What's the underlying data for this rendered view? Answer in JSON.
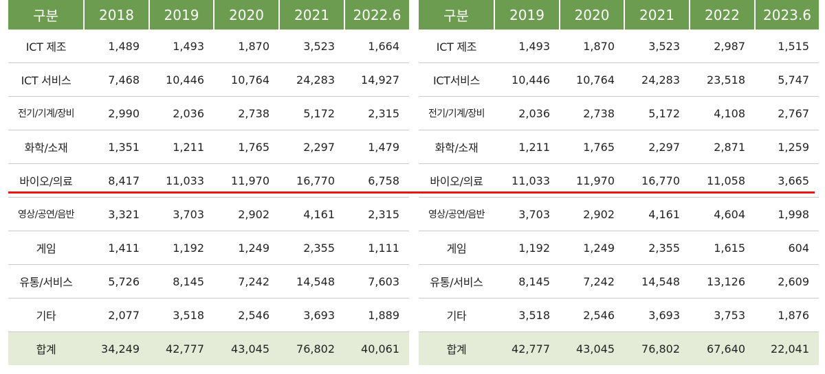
{
  "colors": {
    "header_bg": "#6c9c4f",
    "total_row_bg": "#e4ecd8",
    "divider_red": "#e8141a"
  },
  "left_table": {
    "headers": [
      "구분",
      "2018",
      "2019",
      "2020",
      "2021",
      "2022.6"
    ],
    "rows": [
      {
        "category": "ICT 제조",
        "values": [
          "1,489",
          "1,493",
          "1,870",
          "3,523",
          "1,664"
        ]
      },
      {
        "category": "ICT 서비스",
        "values": [
          "7,468",
          "10,446",
          "10,764",
          "24,283",
          "14,927"
        ]
      },
      {
        "category": "전기/기계/장비",
        "values": [
          "2,990",
          "2,036",
          "2,738",
          "5,172",
          "2,315"
        ]
      },
      {
        "category": "화학/소재",
        "values": [
          "1,351",
          "1,211",
          "1,765",
          "2,297",
          "1,479"
        ]
      },
      {
        "category": "바이오/의료",
        "values": [
          "8,417",
          "11,033",
          "11,970",
          "16,770",
          "6,758"
        ]
      },
      {
        "category": "영상/공연/음반",
        "values": [
          "3,321",
          "3,703",
          "2,902",
          "4,161",
          "2,315"
        ]
      },
      {
        "category": "게임",
        "values": [
          "1,411",
          "1,192",
          "1,249",
          "2,355",
          "1,111"
        ]
      },
      {
        "category": "유통/서비스",
        "values": [
          "5,726",
          "8,145",
          "7,242",
          "14,548",
          "7,603"
        ]
      },
      {
        "category": "기타",
        "values": [
          "2,077",
          "3,518",
          "2,546",
          "3,693",
          "1,889"
        ]
      }
    ],
    "total": {
      "category": "합계",
      "values": [
        "34,249",
        "42,777",
        "43,045",
        "76,802",
        "40,061"
      ]
    }
  },
  "right_table": {
    "headers": [
      "구분",
      "2019",
      "2020",
      "2021",
      "2022",
      "2023.6"
    ],
    "rows": [
      {
        "category": "ICT 제조",
        "values": [
          "1,493",
          "1,870",
          "3,523",
          "2,987",
          "1,515"
        ]
      },
      {
        "category": "ICT서비스",
        "values": [
          "10,446",
          "10,764",
          "24,283",
          "23,518",
          "5,747"
        ]
      },
      {
        "category": "전기/기계/장비",
        "values": [
          "2,036",
          "2,738",
          "5,172",
          "4,108",
          "2,767"
        ]
      },
      {
        "category": "화학/소재",
        "values": [
          "1,211",
          "1,765",
          "2,297",
          "2,871",
          "1,259"
        ]
      },
      {
        "category": "바이오/의료",
        "values": [
          "11,033",
          "11,970",
          "16,770",
          "11,058",
          "3,665"
        ]
      },
      {
        "category": "영상/공연/음반",
        "values": [
          "3,703",
          "2,902",
          "4,161",
          "4,604",
          "1,998"
        ]
      },
      {
        "category": "게임",
        "values": [
          "1,192",
          "1,249",
          "2,355",
          "1,615",
          "604"
        ]
      },
      {
        "category": "유통/서비스",
        "values": [
          "8,145",
          "7,242",
          "14,548",
          "13,126",
          "2,609"
        ]
      },
      {
        "category": "기타",
        "values": [
          "3,518",
          "2,546",
          "3,693",
          "3,753",
          "1,876"
        ]
      }
    ],
    "total": {
      "category": "합계",
      "values": [
        "42,777",
        "43,045",
        "76,802",
        "67,640",
        "22,041"
      ]
    }
  }
}
